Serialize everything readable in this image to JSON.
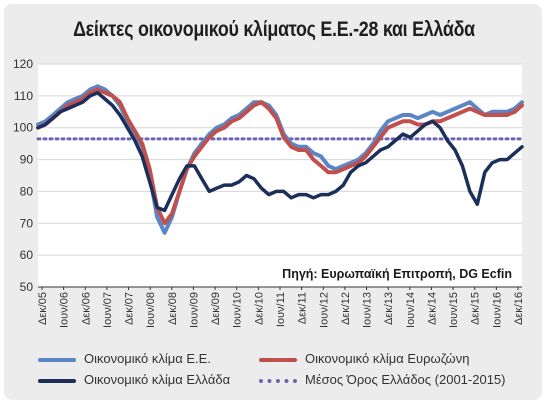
{
  "chart_data": {
    "type": "line",
    "title": "Δείκτες οικονομικού κλίματος Ε.Ε.-28 και Ελλάδα",
    "source_note": "Πηγή: Ευρωπαϊκή Επιτροπή, DG Ecfin",
    "ylim": [
      50,
      120
    ],
    "yticks": [
      50,
      60,
      70,
      80,
      90,
      100,
      110,
      120
    ],
    "x_tick_labels": [
      "Δεκ/05",
      "Ιουν/06",
      "Δεκ/06",
      "Ιουν/07",
      "Δεκ/07",
      "Ιουν/08",
      "Δεκ/08",
      "Ιουν/09",
      "Δεκ/09",
      "Ιουν/10",
      "Δεκ/10",
      "Ιουν/11",
      "Δεκ/11",
      "Ιουν/12",
      "Δεκ/12",
      "Ιουν/13",
      "Δεκ/13",
      "Ιουν/14",
      "Δεκ/14",
      "Ιουν/15",
      "Δεκ/15",
      "Ιουν/16",
      "Δεκ/16"
    ],
    "grid": true,
    "colors": {
      "eu": "#5b86c6",
      "euro": "#c0504d",
      "greece": "#1c2e5a",
      "greece_avg": "#6b63b5",
      "grid": "#d6d6d6",
      "axis": "#333333"
    },
    "series": [
      {
        "key": "eu",
        "name": "Οικονομικό κλίμα Ε.Ε.",
        "values": [
          101,
          102,
          104,
          106,
          108,
          109,
          110,
          112,
          113,
          112,
          110,
          107,
          102,
          98,
          94,
          85,
          72,
          67,
          72,
          80,
          87,
          92,
          95,
          98,
          100,
          101,
          103,
          104,
          106,
          108,
          108,
          107,
          104,
          98,
          95,
          94,
          94,
          92,
          91,
          88,
          87,
          88,
          89,
          90,
          92,
          95,
          99,
          102,
          103,
          104,
          104,
          103,
          104,
          105,
          104,
          105,
          106,
          107,
          108,
          106,
          104,
          105,
          105,
          105,
          106,
          108
        ]
      },
      {
        "key": "euro",
        "name": "Οικονομικό κλίμα Ευρωζώνη",
        "values": [
          100,
          101,
          103,
          105,
          107,
          108,
          109,
          111,
          112,
          111,
          110,
          108,
          103,
          99,
          95,
          87,
          75,
          70,
          73,
          80,
          87,
          91,
          94,
          97,
          99,
          100,
          102,
          103,
          105,
          107,
          108,
          106,
          103,
          97,
          94,
          93,
          93,
          90,
          88,
          86,
          86,
          87,
          88,
          89,
          91,
          94,
          97,
          100,
          101,
          102,
          102,
          101,
          101,
          102,
          102,
          103,
          104,
          105,
          106,
          105,
          104,
          104,
          104,
          104,
          105,
          107
        ]
      },
      {
        "key": "greece",
        "name": "Οικονομικό κλίμα Ελλάδα",
        "values": [
          100,
          101,
          103,
          105,
          106,
          107,
          108,
          110,
          111,
          109,
          107,
          104,
          100,
          96,
          91,
          83,
          75,
          74,
          79,
          84,
          88,
          88,
          84,
          80,
          81,
          82,
          82,
          83,
          85,
          84,
          81,
          79,
          80,
          80,
          78,
          79,
          79,
          78,
          79,
          79,
          80,
          82,
          86,
          88,
          89,
          91,
          93,
          94,
          96,
          98,
          97,
          99,
          101,
          102,
          100,
          96,
          93,
          88,
          80,
          76,
          86,
          89,
          90,
          90,
          92,
          94
        ]
      },
      {
        "key": "greece_avg",
        "name": "Μέσος Όρος Ελλάδος (2001-2015)",
        "values": [
          96.5,
          96.5
        ]
      }
    ]
  }
}
